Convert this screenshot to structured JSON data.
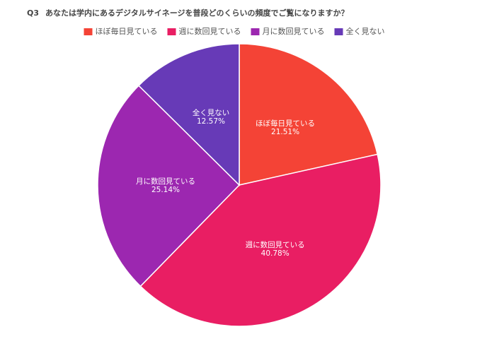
{
  "chart_data": {
    "type": "pie",
    "title_number": "Q3",
    "title": "あなたは学内にあるデジタルサイネージを普段どのくらいの頻度でご覧になりますか？",
    "categories": [
      "ほぼ毎日見ている",
      "週に数回見ている",
      "月に数回見ている",
      "全く見ない"
    ],
    "values": [
      21.51,
      40.78,
      25.14,
      12.57
    ],
    "value_labels": [
      "21.51%",
      "40.78%",
      "25.14%",
      "12.57%"
    ],
    "colors": [
      "#f44336",
      "#e91e63",
      "#9c27b0",
      "#673ab7"
    ],
    "legend": "top"
  }
}
